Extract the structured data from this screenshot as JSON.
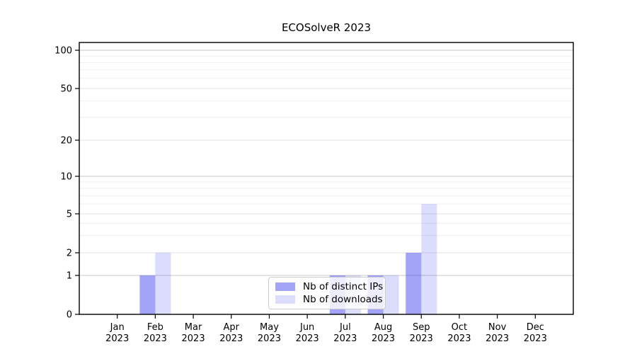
{
  "title": "ECOSolveR 2023",
  "legend": {
    "items": [
      {
        "label": "Nb of distinct IPs",
        "color_key": "ips"
      },
      {
        "label": "Nb of downloads",
        "color_key": "downloads"
      }
    ]
  },
  "colors": {
    "ips": "rgba(35,35,235,0.42)",
    "downloads": "rgba(35,35,235,0.16)",
    "grid_decade": "#c9c9c9",
    "grid_labeled": "#e2e2e2",
    "grid_minor": "#efefef",
    "axis": "#000000"
  },
  "chart_data": {
    "type": "bar",
    "title": "ECOSolveR 2023",
    "categories": [
      "Jan 2023",
      "Feb 2023",
      "Mar 2023",
      "Apr 2023",
      "May 2023",
      "Jun 2023",
      "Jul 2023",
      "Aug 2023",
      "Sep 2023",
      "Oct 2023",
      "Nov 2023",
      "Dec 2023"
    ],
    "series": [
      {
        "name": "Nb of distinct IPs",
        "color_key": "ips",
        "values": [
          0,
          1,
          0,
          0,
          0,
          0,
          1,
          1,
          2,
          0,
          0,
          0
        ]
      },
      {
        "name": "Nb of downloads",
        "color_key": "downloads",
        "values": [
          0,
          2,
          0,
          0,
          0,
          0,
          1,
          1,
          6,
          0,
          0,
          0
        ]
      }
    ],
    "xlabel": "",
    "ylabel": "",
    "yscale": "symlog-like (linear 0-1, logarithmic above 1)",
    "yticks": [
      0,
      1,
      2,
      5,
      10,
      20,
      50,
      100
    ],
    "ytick_labels": [
      "0",
      "1",
      "2",
      "5",
      "10",
      "20",
      "50",
      "100"
    ],
    "minor_gridline_values": [
      3,
      4,
      6,
      7,
      8,
      9,
      30,
      40,
      60,
      70,
      80,
      90
    ],
    "ylim": [
      0,
      115
    ],
    "grid": true,
    "legend_position": "lower center"
  }
}
